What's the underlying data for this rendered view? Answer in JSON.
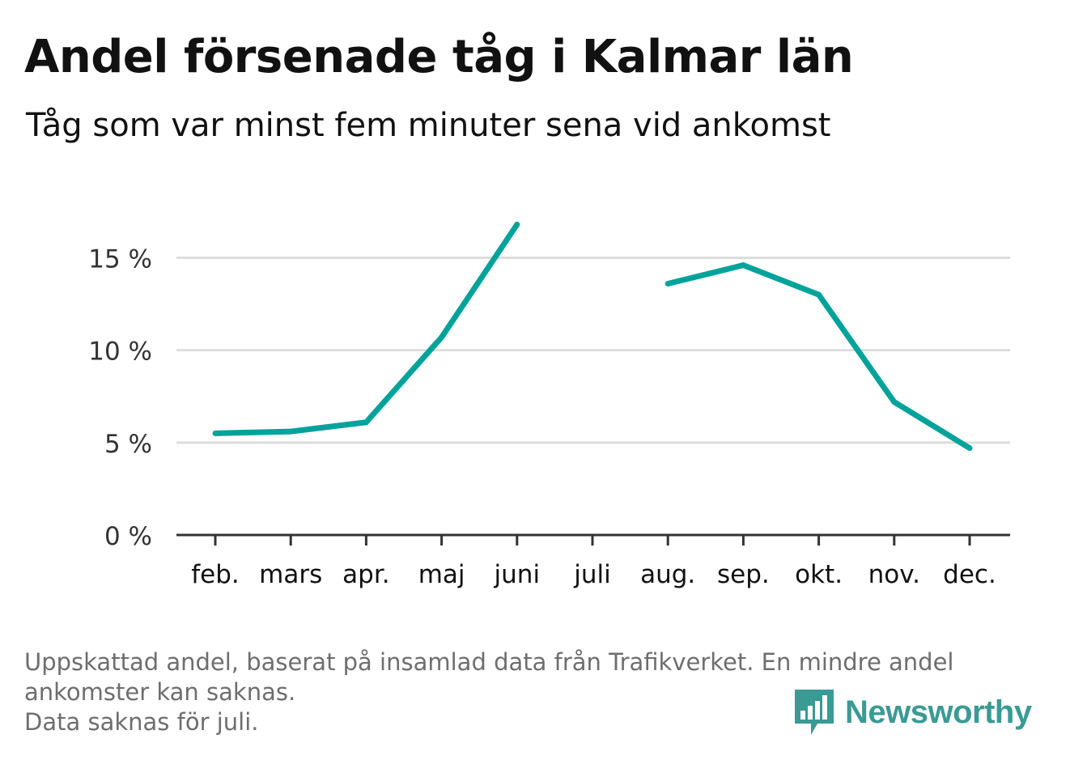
{
  "header": {
    "title": "Andel försenade tåg i Kalmar län",
    "subtitle": "Tåg som var minst fem minuter sena vid ankomst"
  },
  "footer": {
    "note_line1": "Uppskattad andel, baserat på insamlad data från Trafikverket. En mindre andel",
    "note_line2": "ankomster kan saknas.",
    "note_line3": "Data saknas för juli.",
    "brand": "Newsworthy"
  },
  "colors": {
    "line": "#00a39b",
    "grid": "#dddddd",
    "axis": "#333333",
    "brand": "#3a9a94"
  },
  "chart_data": {
    "type": "line",
    "title": "Andel försenade tåg i Kalmar län",
    "subtitle": "Tåg som var minst fem minuter sena vid ankomst",
    "categories": [
      "feb.",
      "mars",
      "apr.",
      "maj",
      "juni",
      "juli",
      "aug.",
      "sep.",
      "okt.",
      "nov.",
      "dec."
    ],
    "series": [
      {
        "values": [
          5.5,
          5.6,
          6.1,
          10.7,
          16.8,
          null,
          13.6,
          14.6,
          13.0,
          7.2,
          4.7
        ]
      }
    ],
    "ylim": [
      0,
      18
    ],
    "yticks": [
      0,
      5,
      10,
      15
    ],
    "ytick_labels": [
      "0 %",
      "5 %",
      "10 %",
      "15 %"
    ],
    "grid": true,
    "legend": "none"
  }
}
